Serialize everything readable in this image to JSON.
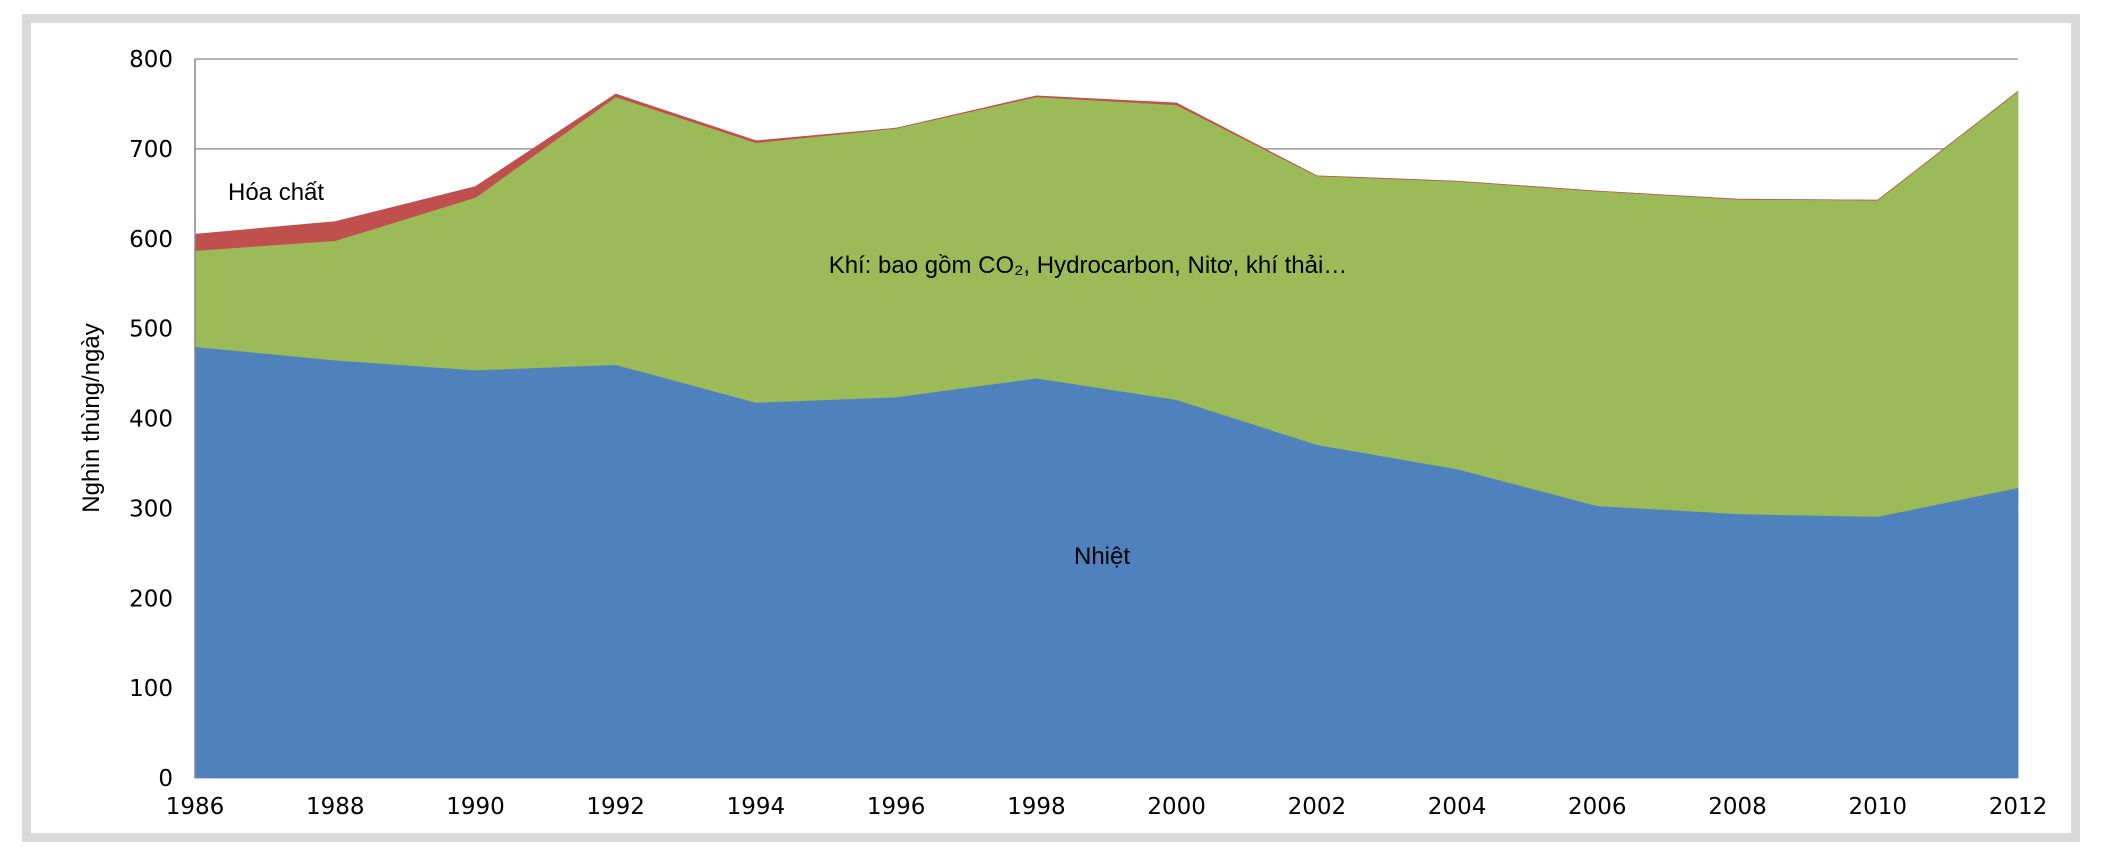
{
  "chart_data": {
    "type": "area",
    "stacked": true,
    "title": "",
    "xlabel": "",
    "ylabel": "Nghìn thùng/ngày",
    "ylim": [
      0,
      800
    ],
    "yticks": [
      "0",
      "100",
      "200",
      "300",
      "400",
      "500",
      "600",
      "700",
      "800"
    ],
    "x": [
      "1986",
      "1988",
      "1990",
      "1992",
      "1994",
      "1996",
      "1998",
      "2000",
      "2002",
      "2004",
      "2006",
      "2008",
      "2010",
      "2012"
    ],
    "series": [
      {
        "name": "Nhiệt",
        "color": "#4f81bd",
        "values": [
          480,
          465,
          454,
          460,
          418,
          424,
          445,
          421,
          371,
          344,
          303,
          294,
          291,
          323
        ]
      },
      {
        "name": "Khí: bao gồm CO₂, Hydrocarbon, Nitơ, khí thải…",
        "color": "#9bbb59",
        "values": [
          107,
          133,
          192,
          298,
          289,
          299,
          313,
          328,
          299,
          320,
          350,
          350,
          352,
          441
        ]
      },
      {
        "name": "Hóa chất",
        "color": "#c0504d",
        "values": [
          18,
          21,
          12,
          3,
          2,
          0,
          1,
          2,
          0,
          0,
          0,
          0,
          0,
          0
        ]
      }
    ],
    "grid": true,
    "legend": "none (inline labels)"
  }
}
